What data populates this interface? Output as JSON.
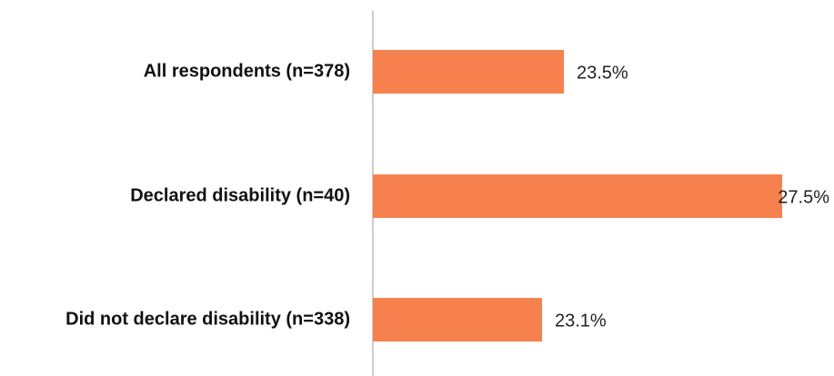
{
  "chart_data": {
    "type": "barh",
    "categories": [
      "All respondents (n=378)",
      "Declared disability (n=40)",
      "Did not declare disability (n=338)"
    ],
    "values": [
      23.5,
      27.5,
      23.1
    ],
    "value_labels": [
      "23.5%",
      "27.5%",
      "23.1%"
    ],
    "color": "#f7804f",
    "xlim": [
      20,
      28.4
    ]
  }
}
